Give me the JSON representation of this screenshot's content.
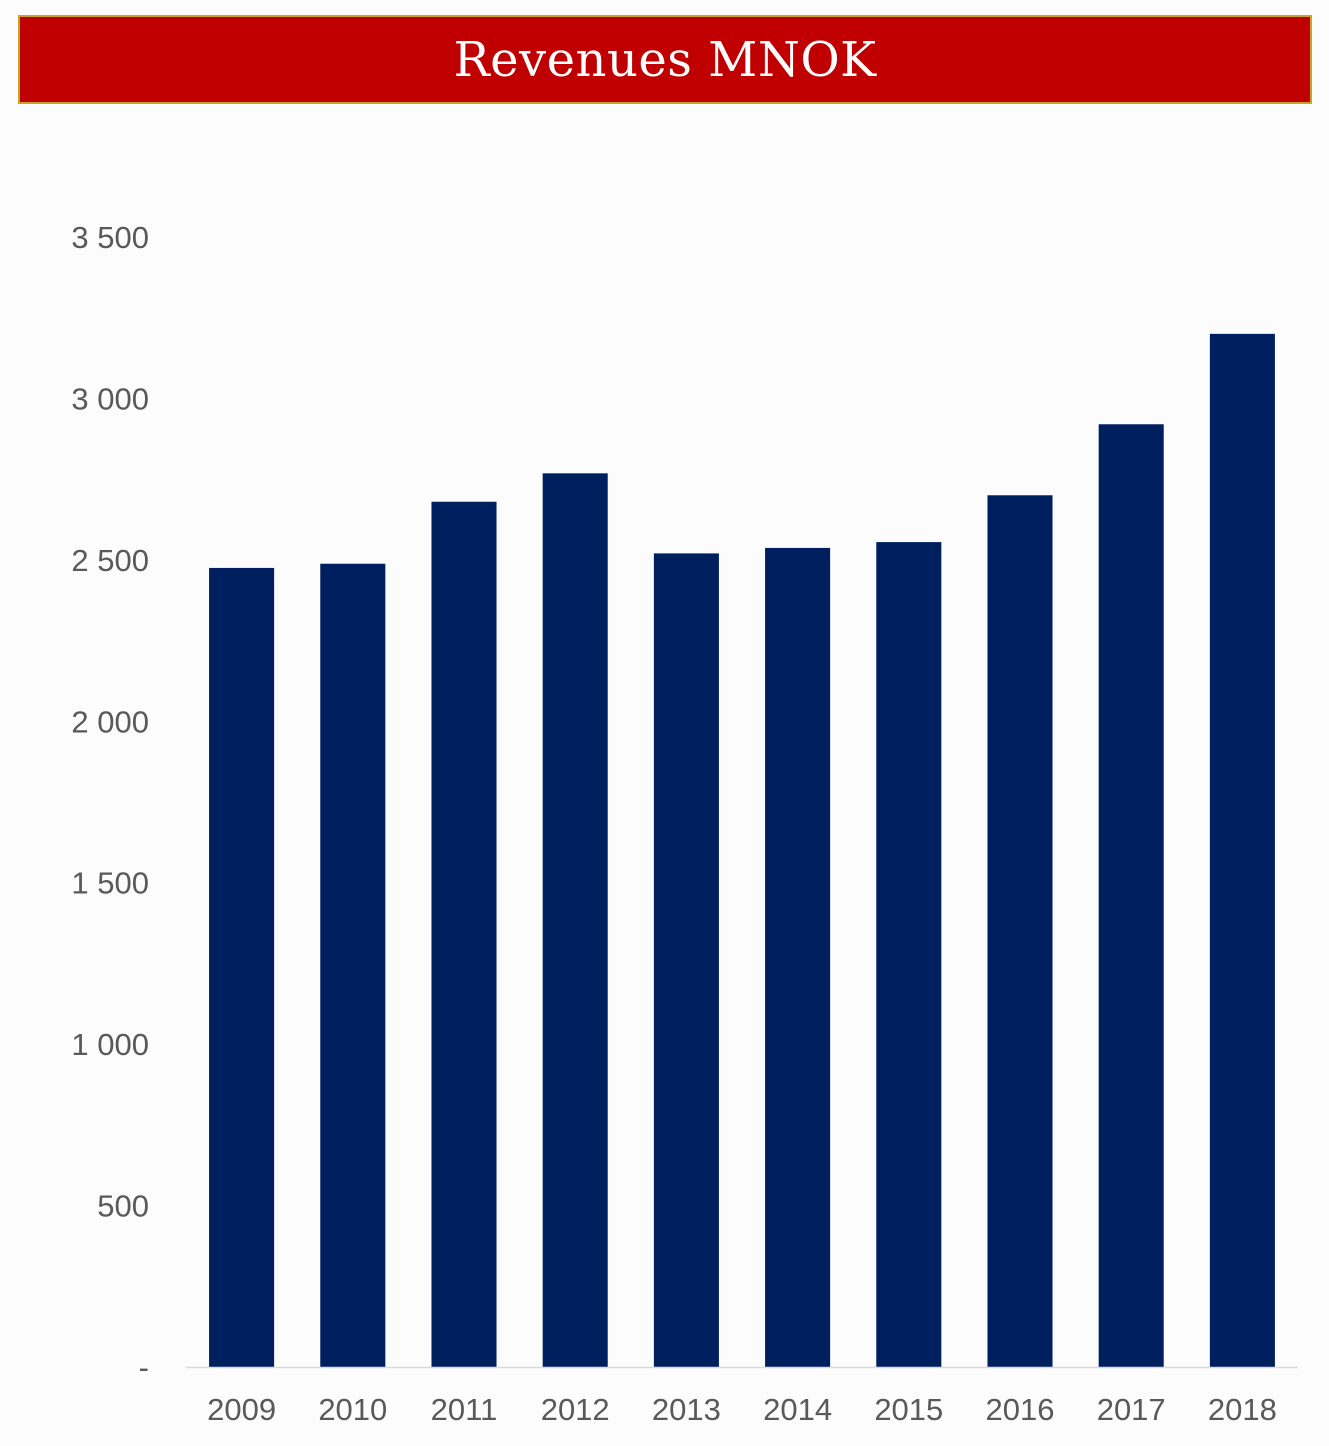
{
  "chart_data": {
    "type": "bar",
    "title": "Revenues MNOK",
    "xlabel": "",
    "ylabel": "",
    "categories": [
      "2009",
      "2010",
      "2011",
      "2012",
      "2013",
      "2014",
      "2015",
      "2016",
      "2017",
      "2018"
    ],
    "values": [
      2475,
      2488,
      2680,
      2768,
      2520,
      2537,
      2555,
      2700,
      2920,
      3200
    ],
    "ylim": [
      0,
      3500
    ],
    "yticks": [
      {
        "value": 0,
        "label": "-"
      },
      {
        "value": 500,
        "label": "500"
      },
      {
        "value": 1000,
        "label": "1 000"
      },
      {
        "value": 1500,
        "label": "1 500"
      },
      {
        "value": 2000,
        "label": "2 000"
      },
      {
        "value": 2500,
        "label": "2 500"
      },
      {
        "value": 3000,
        "label": "3 000"
      },
      {
        "value": 3500,
        "label": "3 500"
      }
    ],
    "grid": false,
    "legend": "none",
    "colors": {
      "bar": "#001f5f",
      "title_background": "#c00000",
      "title_border": "#c9a227",
      "title_text": "#ffffff",
      "axis_line": "#d9d9d9",
      "tick_text": "#595959"
    }
  }
}
